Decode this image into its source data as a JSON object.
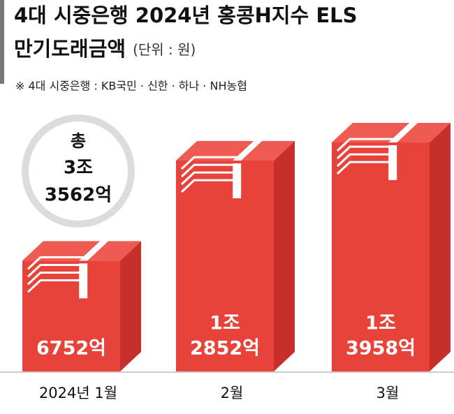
{
  "chart_data": {
    "type": "bar",
    "title": [
      "4대 시중은행 2024년 홍콩H지수 ELS",
      "만기도래금액"
    ],
    "unit": "(단위 : 원)",
    "note": "※ 4대 시중은행 : KB국민 · 신한 · 하나 · NH농협",
    "total_label": [
      "총",
      "3조",
      "3562억"
    ],
    "categories": [
      "2024년 1월",
      "2월",
      "3월"
    ],
    "values": [
      6752,
      12852,
      13958
    ],
    "value_labels": [
      [
        "6752억"
      ],
      [
        "1조",
        "2852억"
      ],
      [
        "1조",
        "3958억"
      ]
    ],
    "color": "#e8433b"
  }
}
